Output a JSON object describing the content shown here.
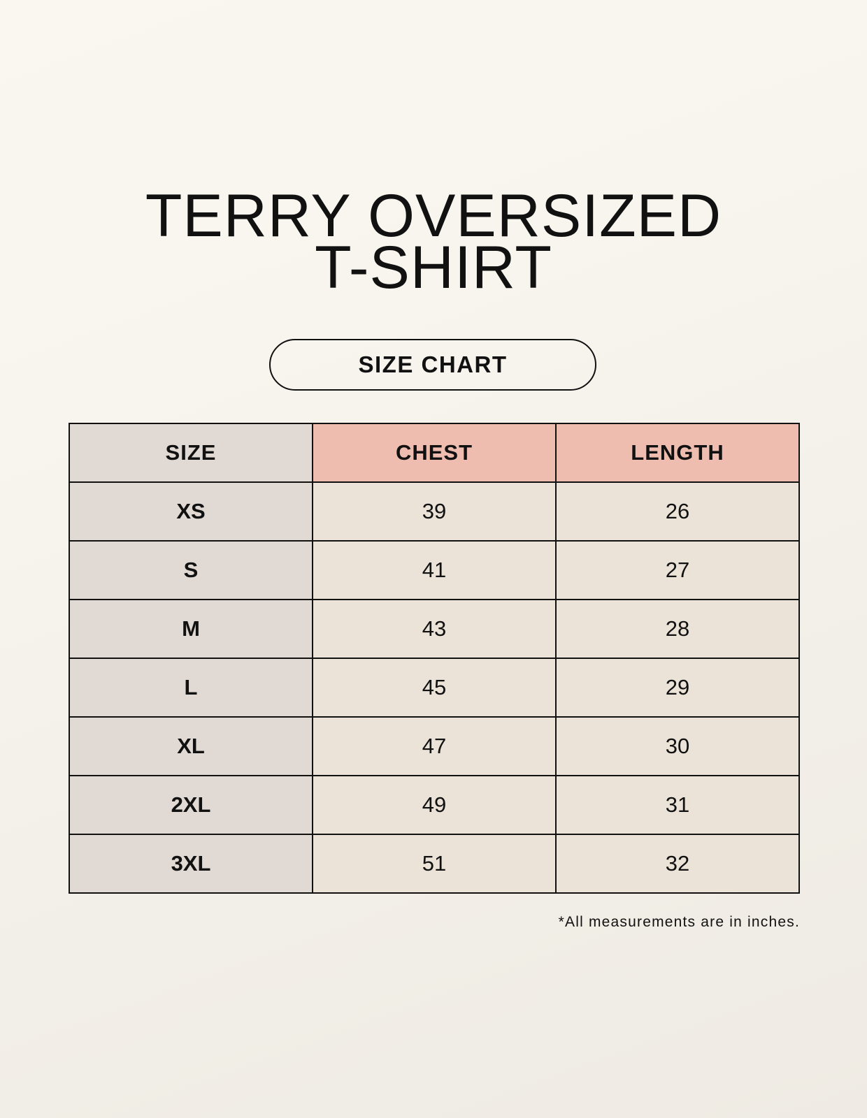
{
  "title_line1": "TERRY OVERSIZED",
  "title_line2": "T-SHIRT",
  "badge": "SIZE CHART",
  "table": {
    "headers": [
      "SIZE",
      "CHEST",
      "LENGTH"
    ],
    "rows": [
      [
        "XS",
        "39",
        "26"
      ],
      [
        "S",
        "41",
        "27"
      ],
      [
        "M",
        "43",
        "28"
      ],
      [
        "L",
        "45",
        "29"
      ],
      [
        "XL",
        "47",
        "30"
      ],
      [
        "2XL",
        "49",
        "31"
      ],
      [
        "3XL",
        "51",
        "32"
      ]
    ]
  },
  "footnote": "*All measurements are in inches.",
  "colors": {
    "header_accent": "#eebdb0",
    "size_column": "#e1d9d3",
    "cell": "#ebe3d8"
  }
}
